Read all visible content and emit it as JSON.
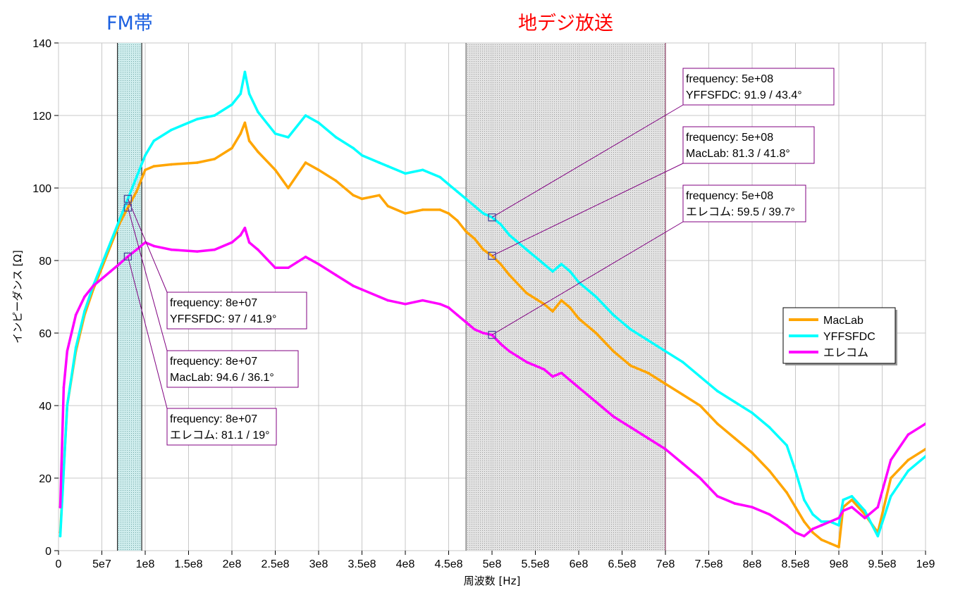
{
  "chart_data": {
    "type": "line",
    "xlabel": "周波数 [Hz]",
    "ylabel": "インピーダンス [Ω]",
    "xlim": [
      0,
      1000000000
    ],
    "ylim": [
      0,
      140
    ],
    "grid": true,
    "legend_position": "right",
    "x_ticks": [
      {
        "value": 0,
        "label": "0"
      },
      {
        "value": 50000000,
        "label": "5e7"
      },
      {
        "value": 100000000,
        "label": "1e8"
      },
      {
        "value": 150000000,
        "label": "1.5e8"
      },
      {
        "value": 200000000,
        "label": "2e8"
      },
      {
        "value": 250000000,
        "label": "2.5e8"
      },
      {
        "value": 300000000,
        "label": "3e8"
      },
      {
        "value": 350000000,
        "label": "3.5e8"
      },
      {
        "value": 400000000,
        "label": "4e8"
      },
      {
        "value": 450000000,
        "label": "4.5e8"
      },
      {
        "value": 500000000,
        "label": "5e8"
      },
      {
        "value": 550000000,
        "label": "5.5e8"
      },
      {
        "value": 600000000,
        "label": "6e8"
      },
      {
        "value": 650000000,
        "label": "6.5e8"
      },
      {
        "value": 700000000,
        "label": "7e8"
      },
      {
        "value": 750000000,
        "label": "7.5e8"
      },
      {
        "value": 800000000,
        "label": "8e8"
      },
      {
        "value": 850000000,
        "label": "8.5e8"
      },
      {
        "value": 900000000,
        "label": "9e8"
      },
      {
        "value": 950000000,
        "label": "9.5e8"
      },
      {
        "value": 1000000000,
        "label": "1e9"
      }
    ],
    "y_ticks": [
      {
        "value": 0,
        "label": "0"
      },
      {
        "value": 20,
        "label": "20"
      },
      {
        "value": 40,
        "label": "40"
      },
      {
        "value": 60,
        "label": "60"
      },
      {
        "value": 80,
        "label": "80"
      },
      {
        "value": 100,
        "label": "100"
      },
      {
        "value": 120,
        "label": "120"
      },
      {
        "value": 140,
        "label": "140"
      }
    ],
    "bands": [
      {
        "label": "FM帯",
        "x_from": 68000000,
        "x_to": 96000000,
        "color": "#1a5fe0",
        "fill": "#b3dede"
      },
      {
        "label": "地デジ放送",
        "x_from": 470000000,
        "x_to": 700000000,
        "color": "#ff0000",
        "fill": "#c4c4c4"
      }
    ],
    "series": [
      {
        "name": "MacLab",
        "color": "#ffa500",
        "x": [
          2000000,
          10000000,
          20000000,
          30000000,
          40000000,
          50000000,
          60000000,
          70000000,
          80000000,
          90000000,
          100000000,
          110000000,
          130000000,
          160000000,
          180000000,
          200000000,
          210000000,
          215000000,
          220000000,
          230000000,
          250000000,
          265000000,
          285000000,
          300000000,
          320000000,
          340000000,
          350000000,
          370000000,
          380000000,
          400000000,
          420000000,
          440000000,
          450000000,
          460000000,
          470000000,
          480000000,
          490000000,
          500000000,
          510000000,
          520000000,
          540000000,
          560000000,
          570000000,
          580000000,
          590000000,
          600000000,
          620000000,
          640000000,
          660000000,
          680000000,
          700000000,
          720000000,
          740000000,
          760000000,
          780000000,
          800000000,
          820000000,
          840000000,
          850000000,
          860000000,
          870000000,
          880000000,
          890000000,
          900000000,
          905000000,
          915000000,
          930000000,
          945000000,
          960000000,
          980000000,
          1000000000
        ],
        "values": [
          5,
          40,
          55,
          65,
          72,
          78,
          84,
          90,
          94.6,
          99,
          105,
          106,
          106.5,
          107,
          108,
          111,
          115,
          118,
          113,
          110,
          105,
          100,
          107,
          105,
          102,
          98,
          97,
          98,
          95,
          93,
          94,
          94,
          93,
          91,
          88,
          86,
          83,
          81.3,
          79,
          76,
          71,
          68,
          66,
          69,
          67,
          64,
          60,
          55,
          51,
          49,
          46,
          43,
          40,
          35,
          31,
          27,
          22,
          16,
          12,
          8,
          5,
          3,
          2,
          1,
          12,
          14,
          10,
          5,
          20,
          25,
          28
        ]
      },
      {
        "name": "YFFSFDC",
        "color": "#00ffff",
        "x": [
          2000000,
          10000000,
          20000000,
          30000000,
          40000000,
          50000000,
          60000000,
          70000000,
          80000000,
          90000000,
          100000000,
          110000000,
          130000000,
          160000000,
          180000000,
          200000000,
          210000000,
          215000000,
          220000000,
          230000000,
          250000000,
          265000000,
          285000000,
          300000000,
          320000000,
          340000000,
          350000000,
          370000000,
          380000000,
          400000000,
          420000000,
          440000000,
          450000000,
          460000000,
          470000000,
          480000000,
          490000000,
          500000000,
          510000000,
          520000000,
          540000000,
          560000000,
          570000000,
          580000000,
          590000000,
          600000000,
          620000000,
          640000000,
          660000000,
          680000000,
          700000000,
          720000000,
          740000000,
          760000000,
          780000000,
          800000000,
          820000000,
          840000000,
          850000000,
          860000000,
          870000000,
          880000000,
          890000000,
          900000000,
          905000000,
          915000000,
          930000000,
          945000000,
          960000000,
          980000000,
          1000000000
        ],
        "values": [
          4,
          40,
          56,
          66,
          73,
          79,
          85,
          91,
          97,
          103,
          109,
          113,
          116,
          119,
          120,
          123,
          126,
          132,
          126,
          121,
          115,
          114,
          120,
          118,
          114,
          111,
          109,
          107,
          106,
          104,
          105,
          103,
          101,
          99,
          97,
          95,
          93,
          91.9,
          90,
          87,
          83,
          79,
          77,
          79,
          77,
          74,
          70,
          65,
          61,
          58,
          55,
          52,
          48,
          44,
          41,
          38,
          34,
          29,
          22,
          14,
          10,
          8,
          8,
          7,
          14,
          15,
          11,
          4,
          15,
          22,
          26
        ]
      },
      {
        "name": "エレコム",
        "color": "#ff00ff",
        "x": [
          2000000,
          6000000,
          10000000,
          20000000,
          30000000,
          40000000,
          50000000,
          60000000,
          70000000,
          80000000,
          90000000,
          100000000,
          110000000,
          130000000,
          160000000,
          180000000,
          200000000,
          210000000,
          215000000,
          220000000,
          230000000,
          250000000,
          265000000,
          285000000,
          300000000,
          320000000,
          340000000,
          350000000,
          370000000,
          380000000,
          400000000,
          420000000,
          440000000,
          450000000,
          460000000,
          470000000,
          480000000,
          490000000,
          500000000,
          510000000,
          520000000,
          540000000,
          560000000,
          570000000,
          580000000,
          590000000,
          600000000,
          620000000,
          640000000,
          660000000,
          680000000,
          700000000,
          720000000,
          740000000,
          760000000,
          780000000,
          800000000,
          820000000,
          840000000,
          850000000,
          860000000,
          870000000,
          880000000,
          890000000,
          900000000,
          905000000,
          915000000,
          930000000,
          945000000,
          960000000,
          980000000,
          1000000000
        ],
        "values": [
          12,
          45,
          55,
          65,
          70,
          73,
          75,
          77,
          79,
          81.1,
          83,
          85,
          84,
          83,
          82.5,
          83,
          85,
          87,
          89,
          85,
          83,
          78,
          78,
          81,
          79,
          76,
          73,
          72,
          70,
          69,
          68,
          69,
          68,
          67,
          65,
          63,
          61,
          60,
          59.5,
          57,
          55,
          52,
          50,
          48,
          49,
          47,
          45,
          41,
          37,
          34,
          31,
          28,
          24,
          20,
          15,
          13,
          12,
          10,
          7,
          5,
          4,
          6,
          7,
          8,
          9,
          11,
          12,
          9,
          12,
          25,
          32,
          35
        ]
      }
    ],
    "annotations": [
      {
        "line1": "frequency: 8e+07",
        "line2": "YFFSFDC: 97 / 41.9°",
        "series": "YFFSFDC",
        "x": 80000000,
        "y": 97
      },
      {
        "line1": "frequency: 8e+07",
        "line2": "MacLab: 94.6 / 36.1°",
        "series": "MacLab",
        "x": 80000000,
        "y": 94.6
      },
      {
        "line1": "frequency: 8e+07",
        "line2": "エレコム: 81.1 / 19°",
        "series": "エレコム",
        "x": 80000000,
        "y": 81.1
      },
      {
        "line1": "frequency: 5e+08",
        "line2": "YFFSFDC: 91.9 / 43.4°",
        "series": "YFFSFDC",
        "x": 500000000,
        "y": 91.9
      },
      {
        "line1": "frequency: 5e+08",
        "line2": "MacLab: 81.3 / 41.8°",
        "series": "MacLab",
        "x": 500000000,
        "y": 81.3
      },
      {
        "line1": "frequency: 5e+08",
        "line2": "エレコム: 59.5 / 39.7°",
        "series": "エレコム",
        "x": 500000000,
        "y": 59.5
      }
    ]
  }
}
